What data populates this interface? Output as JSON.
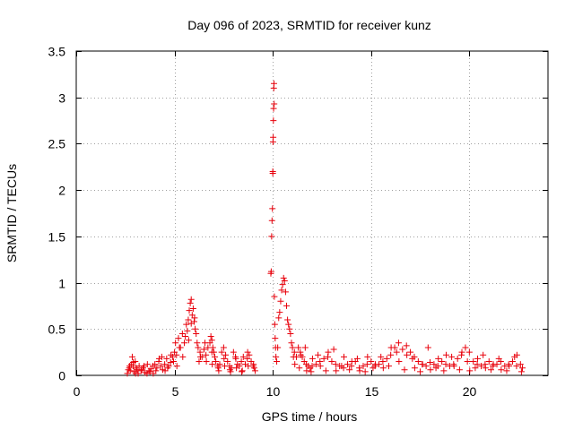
{
  "chart_data": {
    "type": "scatter",
    "title": "Day 096 of 2023, SRMTID for receiver kunz",
    "xlabel": "GPS time / hours",
    "ylabel": "SRMTID / TECUs",
    "xlim": [
      0,
      24
    ],
    "ylim": [
      0,
      3.5
    ],
    "x_ticks": [
      0,
      5,
      10,
      15,
      20
    ],
    "x_tick_labels": [
      "0",
      "5",
      "10",
      "15",
      "20"
    ],
    "y_ticks": [
      0,
      0.5,
      1,
      1.5,
      2,
      2.5,
      3,
      3.5
    ],
    "y_tick_labels": [
      "0",
      "0.5",
      "1",
      "1.5",
      "2",
      "2.5",
      "3",
      "3.5"
    ],
    "grid": true,
    "marker": "+",
    "color": "#e8000b",
    "series": [
      {
        "name": "kunz",
        "x": [
          2.6,
          2.7,
          2.75,
          2.8,
          2.85,
          2.9,
          2.95,
          3.0,
          3.05,
          3.1,
          3.2,
          3.3,
          3.4,
          3.5,
          3.6,
          3.7,
          3.8,
          3.9,
          4.0,
          4.1,
          4.2,
          4.3,
          4.4,
          4.5,
          4.6,
          4.7,
          4.8,
          4.9,
          5.0,
          5.05,
          5.1,
          5.2,
          5.3,
          5.4,
          5.5,
          5.6,
          5.65,
          5.7,
          5.75,
          5.8,
          5.85,
          5.9,
          5.95,
          6.0,
          6.05,
          6.1,
          6.15,
          6.2,
          6.3,
          6.4,
          6.5,
          6.6,
          6.7,
          6.8,
          6.85,
          6.9,
          6.95,
          7.0,
          7.05,
          7.1,
          7.2,
          7.3,
          7.4,
          7.5,
          7.6,
          7.7,
          7.8,
          7.9,
          8.0,
          8.1,
          8.2,
          8.3,
          8.4,
          8.5,
          8.6,
          8.7,
          8.8,
          8.9,
          9.0,
          9.1,
          9.9,
          9.92,
          9.94,
          9.96,
          9.98,
          10.0,
          10.0,
          10.01,
          10.02,
          10.03,
          10.04,
          10.05,
          10.06,
          10.07,
          10.08,
          10.1,
          10.12,
          10.14,
          10.16,
          10.2,
          10.25,
          10.3,
          10.35,
          10.4,
          10.45,
          10.5,
          10.55,
          10.6,
          10.65,
          10.7,
          10.75,
          10.8,
          10.85,
          10.9,
          10.95,
          11.0,
          11.1,
          11.2,
          11.3,
          11.4,
          11.5,
          11.6,
          11.7,
          11.8,
          11.9,
          12.0,
          12.2,
          12.4,
          12.6,
          12.8,
          13.0,
          13.2,
          13.4,
          13.6,
          13.8,
          14.0,
          14.2,
          14.4,
          14.6,
          14.8,
          15.0,
          15.2,
          15.4,
          15.6,
          15.8,
          16.0,
          16.2,
          16.4,
          16.6,
          16.8,
          17.0,
          17.2,
          17.4,
          17.6,
          17.8,
          18.0,
          18.2,
          18.4,
          18.6,
          18.8,
          19.0,
          19.2,
          19.4,
          19.6,
          19.8,
          20.0,
          20.2,
          20.4,
          20.6,
          20.8,
          21.0,
          21.2,
          21.4,
          21.6,
          21.8,
          22.0,
          22.2,
          22.4,
          22.6,
          22.7,
          2.65,
          2.9,
          3.15,
          3.45,
          3.75,
          4.05,
          4.35,
          4.65,
          4.95,
          5.25,
          5.55,
          5.85,
          6.25,
          6.55,
          6.9,
          7.25,
          7.55,
          7.85,
          8.15,
          8.45,
          8.75,
          9.05,
          11.05,
          11.35,
          11.65,
          11.95,
          12.3,
          12.7,
          13.1,
          13.5,
          13.9,
          14.3,
          14.7,
          15.1,
          15.5,
          15.9,
          16.3,
          16.7,
          17.1,
          17.5,
          17.9,
          18.3,
          18.7,
          19.1,
          19.5,
          19.9,
          20.3,
          20.7,
          21.1,
          21.5,
          21.9,
          22.3,
          22.65,
          2.72,
          3.02,
          3.32,
          3.62,
          3.92,
          4.22,
          4.52,
          4.82,
          5.12,
          5.42,
          5.72,
          6.02,
          6.32,
          6.62,
          6.92,
          7.22,
          7.52,
          7.82,
          8.12,
          8.42,
          8.72,
          9.02,
          11.12,
          11.42,
          11.72,
          12.02,
          12.42,
          12.82,
          13.22,
          13.62,
          14.02,
          14.42,
          14.82,
          15.22,
          15.62,
          16.02,
          16.42,
          16.82,
          17.22,
          17.62,
          18.02,
          18.42,
          18.82,
          19.22,
          19.62,
          20.02,
          20.42,
          20.82,
          21.22,
          21.62,
          22.02,
          22.42
        ],
        "y": [
          0.02,
          0.08,
          0.05,
          0.12,
          0.2,
          0.1,
          0.04,
          0.15,
          0.08,
          0.06,
          0.1,
          0.05,
          0.08,
          0.03,
          0.02,
          0.05,
          0.07,
          0.1,
          0.12,
          0.08,
          0.15,
          0.1,
          0.06,
          0.12,
          0.18,
          0.1,
          0.14,
          0.2,
          0.25,
          0.35,
          0.22,
          0.4,
          0.3,
          0.45,
          0.35,
          0.55,
          0.48,
          0.6,
          0.7,
          0.78,
          0.82,
          0.65,
          0.72,
          0.58,
          0.5,
          0.45,
          0.35,
          0.3,
          0.25,
          0.2,
          0.28,
          0.22,
          0.3,
          0.35,
          0.42,
          0.38,
          0.3,
          0.25,
          0.2,
          0.15,
          0.1,
          0.12,
          0.25,
          0.3,
          0.22,
          0.15,
          0.1,
          0.08,
          0.25,
          0.2,
          0.12,
          0.1,
          0.15,
          0.2,
          0.12,
          0.18,
          0.22,
          0.15,
          0.1,
          0.05,
          1.1,
          1.12,
          1.5,
          1.67,
          1.8,
          2.18,
          2.2,
          2.52,
          2.57,
          2.75,
          2.88,
          3.1,
          3.15,
          2.93,
          0.85,
          0.55,
          0.4,
          0.3,
          0.2,
          0.15,
          0.3,
          0.62,
          0.68,
          0.8,
          0.92,
          0.98,
          1.05,
          1.02,
          0.9,
          0.75,
          0.6,
          0.55,
          0.5,
          0.45,
          0.35,
          0.3,
          0.25,
          0.2,
          0.3,
          0.25,
          0.2,
          0.15,
          0.12,
          0.1,
          0.08,
          0.1,
          0.12,
          0.15,
          0.18,
          0.2,
          0.15,
          0.12,
          0.1,
          0.08,
          0.12,
          0.1,
          0.15,
          0.08,
          0.1,
          0.12,
          0.15,
          0.1,
          0.12,
          0.15,
          0.18,
          0.22,
          0.3,
          0.35,
          0.28,
          0.32,
          0.25,
          0.2,
          0.15,
          0.12,
          0.1,
          0.14,
          0.12,
          0.1,
          0.15,
          0.12,
          0.1,
          0.12,
          0.18,
          0.22,
          0.3,
          0.25,
          0.15,
          0.12,
          0.1,
          0.12,
          0.15,
          0.1,
          0.12,
          0.15,
          0.1,
          0.12,
          0.15,
          0.1,
          0.12,
          0.08,
          0.06,
          0.14,
          0.02,
          0.1,
          0.04,
          0.05,
          0.2,
          0.08,
          0.15,
          0.3,
          0.42,
          0.56,
          0.15,
          0.35,
          0.25,
          0.05,
          0.1,
          0.04,
          0.08,
          0.05,
          0.1,
          0.08,
          0.2,
          0.08,
          0.3,
          0.04,
          0.22,
          0.05,
          0.28,
          0.1,
          0.06,
          0.18,
          0.04,
          0.08,
          0.2,
          0.1,
          0.25,
          0.06,
          0.18,
          0.04,
          0.3,
          0.08,
          0.05,
          0.2,
          0.06,
          0.15,
          0.08,
          0.22,
          0.06,
          0.18,
          0.05,
          0.2,
          0.04,
          0.1,
          0.02,
          0.06,
          0.12,
          0.02,
          0.18,
          0.05,
          0.22,
          0.1,
          0.2,
          0.38,
          0.62,
          0.2,
          0.15,
          0.12,
          0.08,
          0.18,
          0.06,
          0.18,
          0.04,
          0.25,
          0.12,
          0.12,
          0.22,
          0.05,
          0.18,
          0.1,
          0.25,
          0.05,
          0.2,
          0.15,
          0.05,
          0.2,
          0.12,
          0.08,
          0.3,
          0.15,
          0.22,
          0.08,
          0.12,
          0.06,
          0.18,
          0.22,
          0.1,
          0.25,
          0.05,
          0.18,
          0.08,
          0.12,
          0.06,
          0.1,
          0.22
        ]
      }
    ]
  }
}
